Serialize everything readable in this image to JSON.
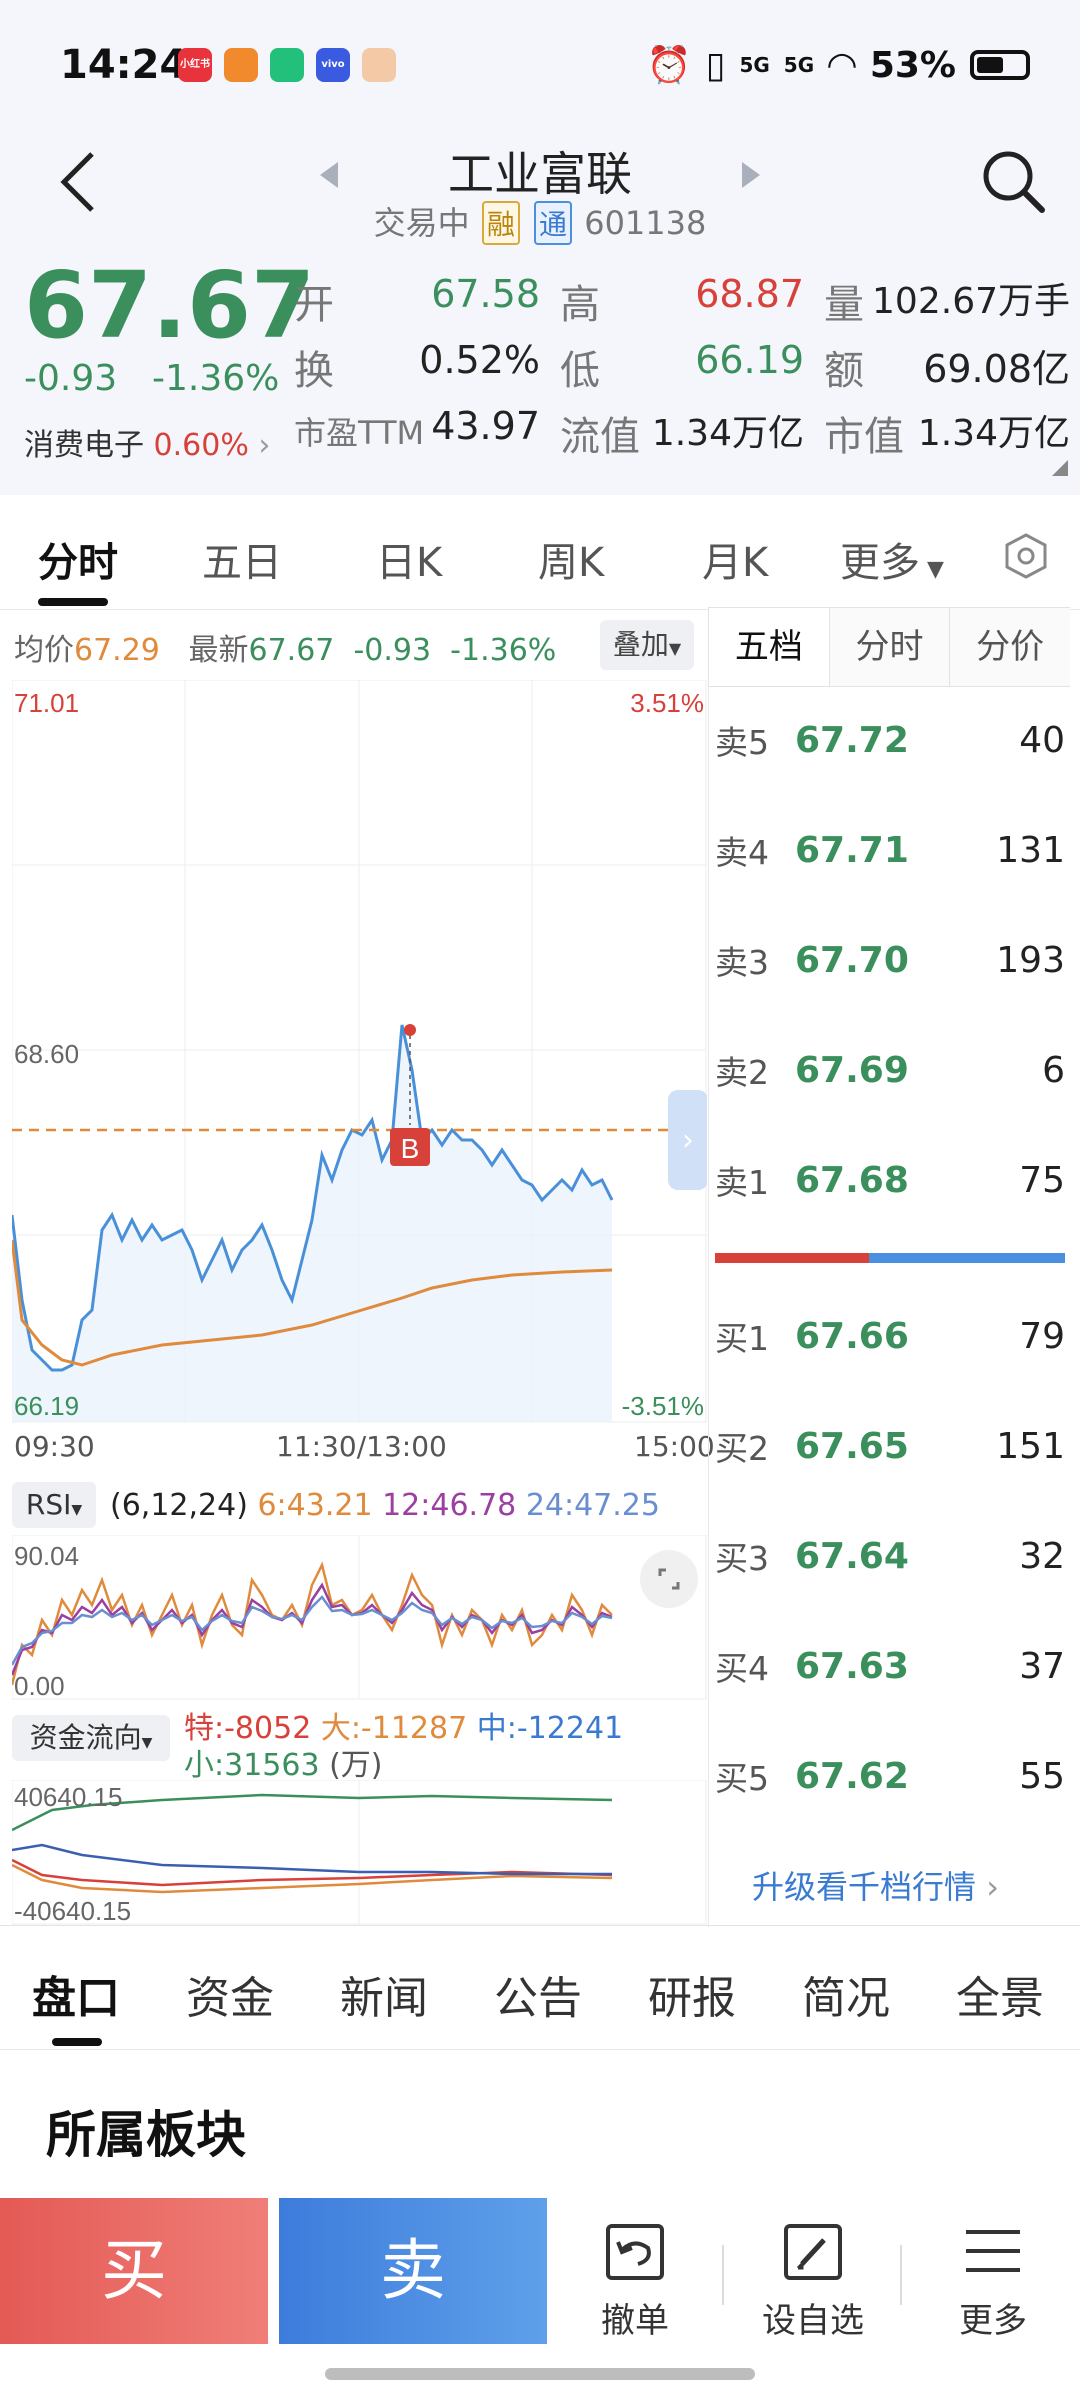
{
  "status_bar": {
    "time": "14:24",
    "apps": [
      "小红书",
      "",
      "",
      "vivo",
      ""
    ],
    "network1": "5G",
    "network2": "5G",
    "battery_pct": "53%"
  },
  "header": {
    "stock_name": "工业富联",
    "trading_status": "交易中",
    "tag_rong": "融",
    "tag_tong": "通",
    "stock_code": "601138"
  },
  "quote": {
    "price": "67.67",
    "change": "-0.93",
    "change_pct": "-1.36%",
    "sector_name": "消费电子",
    "sector_pct": "0.60%",
    "open_label": "开",
    "open": "67.58",
    "high_label": "高",
    "high": "68.87",
    "volume_label": "量",
    "volume": "102.67万手",
    "turnover_label": "换",
    "turnover": "0.52%",
    "low_label": "低",
    "low": "66.19",
    "amount_label": "额",
    "amount": "69.08亿",
    "pe_label": "市盈TTM",
    "pe": "43.97",
    "float_cap_label": "流值",
    "float_cap": "1.34万亿",
    "mkt_cap_label": "市值",
    "mkt_cap": "1.34万亿"
  },
  "chart_tabs": [
    "分时",
    "五日",
    "日K",
    "周K",
    "月K",
    "更多"
  ],
  "chart_info": {
    "avg_label": "均价",
    "avg": "67.29",
    "latest_label": "最新",
    "latest": "67.67",
    "change": "-0.93",
    "change_pct": "-1.36%",
    "overlay_btn": "叠加"
  },
  "main_chart": {
    "y_top": "71.01",
    "y_mid": "68.60",
    "y_bottom": "66.19",
    "pct_top": "3.51%",
    "pct_bottom": "-3.51%",
    "x_start": "09:30",
    "x_mid": "11:30/13:00",
    "x_end": "15:00",
    "marker": "B"
  },
  "rsi": {
    "label": "RSI",
    "params": "(6,12,24)",
    "r6": "6:43.21",
    "r12": "12:46.78",
    "r24": "24:47.25",
    "y_top": "90.04",
    "y_bottom": "0.00"
  },
  "capital_flow": {
    "label": "资金流向",
    "special": "特:-8052",
    "large": "大:-11287",
    "medium": "中:-12241",
    "small": "小:31563",
    "unit": "(万)",
    "y_top": "40640.15",
    "y_bottom": "-40640.15"
  },
  "order_book": {
    "tabs": [
      "五档",
      "分时",
      "分价"
    ],
    "asks": [
      {
        "label": "卖5",
        "price": "67.72",
        "vol": "40"
      },
      {
        "label": "卖4",
        "price": "67.71",
        "vol": "131"
      },
      {
        "label": "卖3",
        "price": "67.70",
        "vol": "193"
      },
      {
        "label": "卖2",
        "price": "67.69",
        "vol": "6"
      },
      {
        "label": "卖1",
        "price": "67.68",
        "vol": "75"
      }
    ],
    "bids": [
      {
        "label": "买1",
        "price": "67.66",
        "vol": "79"
      },
      {
        "label": "买2",
        "price": "67.65",
        "vol": "151"
      },
      {
        "label": "买3",
        "price": "67.64",
        "vol": "32"
      },
      {
        "label": "买4",
        "price": "67.63",
        "vol": "37"
      },
      {
        "label": "买5",
        "price": "67.62",
        "vol": "55"
      }
    ],
    "upgrade_link": "升级看千档行情"
  },
  "info_tabs": [
    "盘口",
    "资金",
    "新闻",
    "公告",
    "研报",
    "简况",
    "全景"
  ],
  "section_title": "所属板块",
  "actions": {
    "buy": "买",
    "sell": "卖",
    "cancel": "撤单",
    "watchlist": "设自选",
    "more": "更多"
  },
  "colors": {
    "up_red": "#d8403a",
    "down_green": "#3a8f5c",
    "price_line": "#4a90d9",
    "avg_line": "#e08a3c",
    "rsi6": "#e08a3c",
    "rsi12": "#9b3fa0",
    "rsi24": "#6a8fd0"
  }
}
